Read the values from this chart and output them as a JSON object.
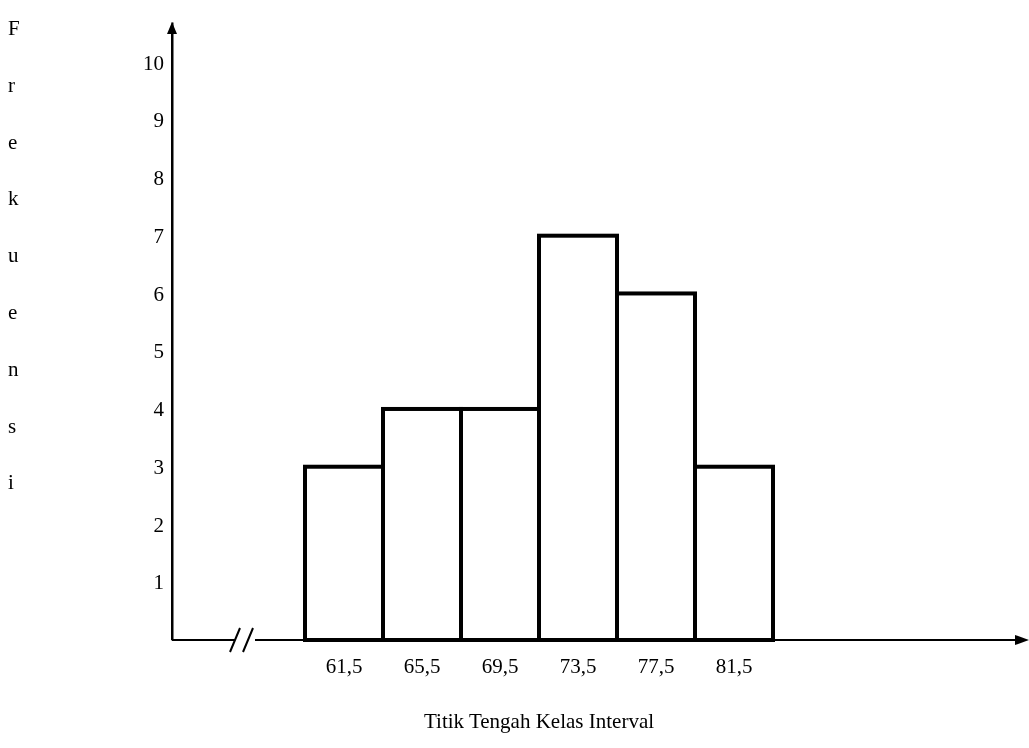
{
  "chart_data": {
    "type": "bar",
    "xlabel": "Titik Tengah Kelas Interval",
    "ylabel": "Frekuensi",
    "categories": [
      "61,5",
      "65,5",
      "69,5",
      "73,5",
      "77,5",
      "81,5"
    ],
    "values": [
      3,
      4,
      4,
      7,
      6,
      3
    ],
    "color": "#ffffff",
    "ylim": [
      0,
      10.7
    ],
    "yticks": [
      1,
      2,
      3,
      4,
      5,
      6,
      7,
      8,
      9,
      10
    ],
    "grid": false
  }
}
